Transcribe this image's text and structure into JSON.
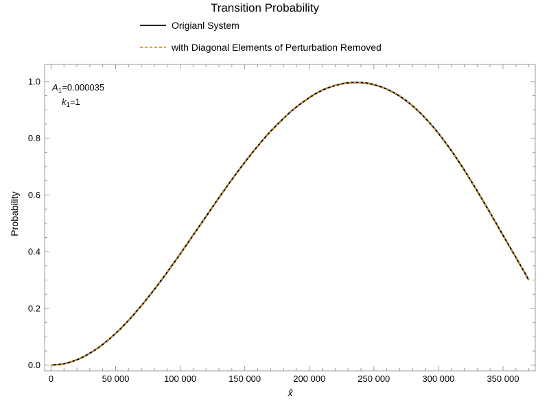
{
  "chart_data": {
    "type": "line",
    "title": "Transition Probability",
    "xlabel": "x̂",
    "ylabel": "Probability",
    "xlim": [
      -5000,
      375000
    ],
    "ylim": [
      -0.02,
      1.06
    ],
    "x_ticks": [
      0,
      50000,
      100000,
      150000,
      200000,
      250000,
      300000,
      350000
    ],
    "x_tick_labels": [
      "0",
      "50 000",
      "100 000",
      "150 000",
      "200 000",
      "250 000",
      "300 000",
      "350 000"
    ],
    "y_ticks": [
      0.0,
      0.2,
      0.4,
      0.6,
      0.8,
      1.0
    ],
    "y_tick_labels": [
      "0.0",
      "0.2",
      "0.4",
      "0.6",
      "0.8",
      "1.0"
    ],
    "grid": false,
    "legend_position": "top-center",
    "annotations": {
      "a_label": "A",
      "a_sub": "1",
      "a_value": "=0.000035",
      "k_label": "k",
      "k_sub": "1",
      "k_value": "=1"
    },
    "x": [
      0,
      10000,
      20000,
      30000,
      40000,
      50000,
      60000,
      70000,
      80000,
      90000,
      100000,
      110000,
      120000,
      130000,
      140000,
      150000,
      160000,
      170000,
      180000,
      190000,
      200000,
      210000,
      220000,
      230000,
      240000,
      250000,
      260000,
      270000,
      280000,
      290000,
      300000,
      310000,
      320000,
      330000,
      340000,
      350000,
      360000,
      370000
    ],
    "series": [
      {
        "name": "Origianl System",
        "color": "#000000",
        "dash": "solid",
        "values": [
          0.0,
          0.005,
          0.019,
          0.042,
          0.073,
          0.112,
          0.158,
          0.21,
          0.267,
          0.328,
          0.392,
          0.458,
          0.524,
          0.59,
          0.654,
          0.715,
          0.772,
          0.824,
          0.87,
          0.91,
          0.943,
          0.969,
          0.986,
          0.995,
          0.996,
          0.989,
          0.973,
          0.948,
          0.914,
          0.87,
          0.817,
          0.756,
          0.688,
          0.614,
          0.537,
          0.458,
          0.38,
          0.3
        ]
      },
      {
        "name": "with Diagonal Elements of Perturbation Removed",
        "color": "#E8920C",
        "dash": "dashed",
        "values": [
          0.0,
          0.005,
          0.019,
          0.042,
          0.073,
          0.112,
          0.158,
          0.21,
          0.267,
          0.328,
          0.392,
          0.458,
          0.524,
          0.59,
          0.654,
          0.715,
          0.772,
          0.824,
          0.87,
          0.91,
          0.943,
          0.969,
          0.986,
          0.995,
          0.996,
          0.989,
          0.973,
          0.948,
          0.914,
          0.87,
          0.817,
          0.756,
          0.688,
          0.614,
          0.537,
          0.458,
          0.38,
          0.3
        ]
      }
    ]
  }
}
